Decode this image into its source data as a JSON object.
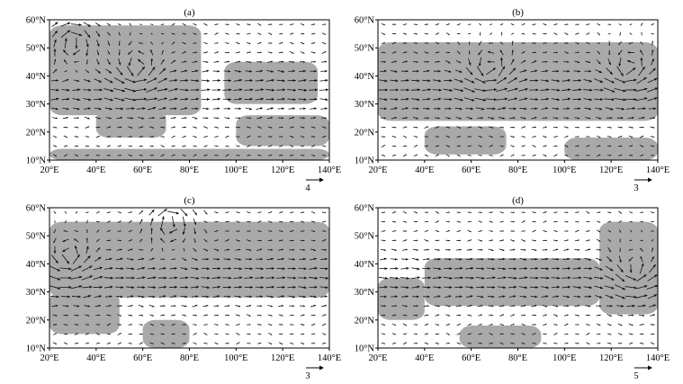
{
  "chart_data": [
    {
      "type": "vector",
      "panel_label": "(a)",
      "x_ticks": [
        "20°E",
        "40°E",
        "60°E",
        "80°E",
        "100°E",
        "120°E",
        "140°E"
      ],
      "y_ticks": [
        "10°N",
        "20°N",
        "30°N",
        "40°N",
        "50°N",
        "60°N"
      ],
      "xlim": [
        20,
        140
      ],
      "ylim": [
        10,
        60
      ],
      "reference_vector": "4",
      "shading_color": "#a9a9a9",
      "cyclones": [
        {
          "lon": 58,
          "lat": 42,
          "sense": "ccw"
        },
        {
          "lon": 30,
          "lat": 52,
          "sense": "cw"
        }
      ],
      "shaded_regions": [
        {
          "lon": [
            20,
            140
          ],
          "lat": [
            10,
            14
          ]
        },
        {
          "lon": [
            20,
            85
          ],
          "lat": [
            26,
            58
          ]
        },
        {
          "lon": [
            40,
            70
          ],
          "lat": [
            18,
            28
          ]
        },
        {
          "lon": [
            95,
            135
          ],
          "lat": [
            30,
            45
          ]
        },
        {
          "lon": [
            100,
            140
          ],
          "lat": [
            15,
            26
          ]
        }
      ]
    },
    {
      "type": "vector",
      "panel_label": "(b)",
      "x_ticks": [
        "20°E",
        "40°E",
        "60°E",
        "80°E",
        "100°E",
        "120°E",
        "140°E"
      ],
      "y_ticks": [
        "10°N",
        "20°N",
        "30°N",
        "40°N",
        "50°N",
        "60°N"
      ],
      "xlim": [
        20,
        140
      ],
      "ylim": [
        10,
        60
      ],
      "reference_vector": "3",
      "shading_color": "#a9a9a9",
      "cyclones": [
        {
          "lon": 68,
          "lat": 42,
          "sense": "ccw"
        },
        {
          "lon": 128,
          "lat": 42,
          "sense": "ccw"
        }
      ],
      "shaded_regions": [
        {
          "lon": [
            20,
            140
          ],
          "lat": [
            24,
            52
          ]
        },
        {
          "lon": [
            40,
            75
          ],
          "lat": [
            12,
            22
          ]
        },
        {
          "lon": [
            100,
            140
          ],
          "lat": [
            10,
            18
          ]
        }
      ]
    },
    {
      "type": "vector",
      "panel_label": "(c)",
      "x_ticks": [
        "20°E",
        "40°E",
        "60°E",
        "80°E",
        "100°E",
        "120°E",
        "140°E"
      ],
      "y_ticks": [
        "10°N",
        "20°N",
        "30°N",
        "40°N",
        "50°N",
        "60°N"
      ],
      "xlim": [
        20,
        140
      ],
      "ylim": [
        10,
        60
      ],
      "reference_vector": "3",
      "shading_color": "#a9a9a9",
      "cyclones": [
        {
          "lon": 28,
          "lat": 42,
          "sense": "ccw"
        },
        {
          "lon": 72,
          "lat": 55,
          "sense": "cw"
        }
      ],
      "shaded_regions": [
        {
          "lon": [
            20,
            140
          ],
          "lat": [
            28,
            55
          ]
        },
        {
          "lon": [
            20,
            50
          ],
          "lat": [
            15,
            30
          ]
        },
        {
          "lon": [
            60,
            80
          ],
          "lat": [
            10,
            20
          ]
        }
      ]
    },
    {
      "type": "vector",
      "panel_label": "(d)",
      "x_ticks": [
        "20°E",
        "40°E",
        "60°E",
        "80°E",
        "100°E",
        "120°E",
        "140°E"
      ],
      "y_ticks": [
        "10°N",
        "20°N",
        "30°N",
        "40°N",
        "50°N",
        "60°N"
      ],
      "xlim": [
        20,
        140
      ],
      "ylim": [
        10,
        60
      ],
      "reference_vector": "5",
      "shading_color": "#a9a9a9",
      "cyclones": [
        {
          "lon": 130,
          "lat": 37,
          "sense": "ccw"
        }
      ],
      "shaded_regions": [
        {
          "lon": [
            40,
            115
          ],
          "lat": [
            25,
            42
          ]
        },
        {
          "lon": [
            115,
            140
          ],
          "lat": [
            22,
            55
          ]
        },
        {
          "lon": [
            20,
            40
          ],
          "lat": [
            20,
            35
          ]
        },
        {
          "lon": [
            55,
            90
          ],
          "lat": [
            10,
            18
          ]
        }
      ]
    }
  ]
}
